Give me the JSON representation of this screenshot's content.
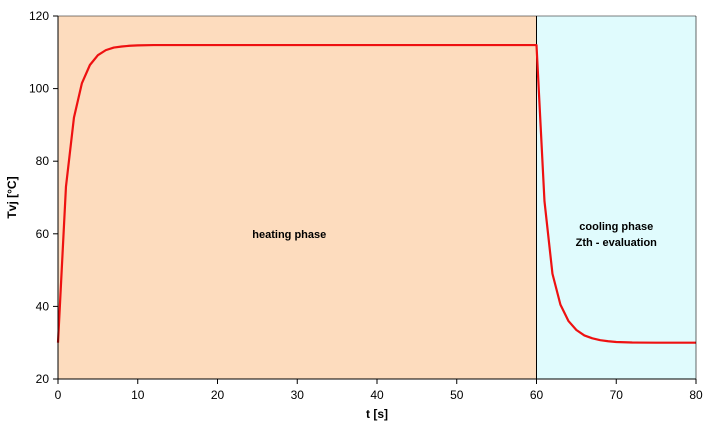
{
  "chart_data": {
    "type": "line",
    "xlabel": "t [s]",
    "ylabel": "Tvj [°C]",
    "xlim": [
      0,
      80
    ],
    "ylim": [
      20,
      120
    ],
    "x_ticks": [
      0,
      10,
      20,
      30,
      40,
      50,
      60,
      70,
      80
    ],
    "y_ticks": [
      20,
      40,
      60,
      80,
      100,
      120
    ],
    "grid": false,
    "legend": "none",
    "regions": [
      {
        "x_start": 0,
        "x_end": 60,
        "color": "#fddcbe",
        "label_lines": [
          "heating phase"
        ],
        "label_at": [
          29,
          60
        ]
      },
      {
        "x_start": 60,
        "x_end": 80,
        "color": "#e0fbfd",
        "label_lines": [
          "cooling phase",
          "Zth - evaluation"
        ],
        "label_at": [
          70,
          60
        ]
      }
    ],
    "series": [
      {
        "color": "#ee1111",
        "x": [
          0,
          1,
          2,
          3,
          4,
          5,
          6,
          7,
          8,
          9,
          10,
          12,
          15,
          20,
          30,
          40,
          50,
          60,
          61,
          62,
          63,
          64,
          65,
          66,
          67,
          68,
          69,
          70,
          72,
          75,
          80
        ],
        "y": [
          30,
          73,
          92,
          101.5,
          106.5,
          109.2,
          110.6,
          111.3,
          111.6,
          111.8,
          111.9,
          112,
          112,
          112,
          112,
          112,
          112,
          112,
          69,
          49,
          40.5,
          36,
          33.5,
          32,
          31.2,
          30.7,
          30.4,
          30.2,
          30.05,
          30,
          30
        ]
      }
    ],
    "divider_x": 60,
    "divider_color": "#000000"
  }
}
